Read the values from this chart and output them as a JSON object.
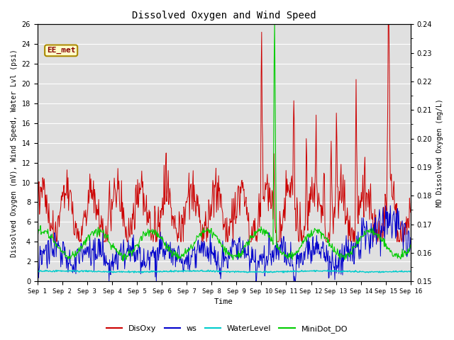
{
  "title": "Dissolved Oxygen and Wind Speed",
  "xlabel": "Time",
  "ylabel_left": "Dissolved Oxygen (mV), Wind Speed, Water Lvl (psi)",
  "ylabel_right": "MD Dissolved Oxygen (mg/L)",
  "ylim_left": [
    0,
    26
  ],
  "ylim_right": [
    0.15,
    0.24
  ],
  "yticks_left": [
    0,
    2,
    4,
    6,
    8,
    10,
    12,
    14,
    16,
    18,
    20,
    22,
    24,
    26
  ],
  "yticks_right": [
    0.15,
    0.16,
    0.17,
    0.18,
    0.19,
    0.2,
    0.21,
    0.22,
    0.23,
    0.24
  ],
  "xtick_labels": [
    "Sep 1",
    "Sep 2",
    "Sep 3",
    "Sep 4",
    "Sep 5",
    "Sep 6",
    "Sep 7",
    "Sep 8",
    "Sep 9",
    "Sep 10",
    "Sep 11",
    "Sep 12",
    "Sep 13",
    "Sep 14",
    "Sep 15",
    "Sep 16"
  ],
  "annotation_text": "EE_met",
  "colors": {
    "DisOxy": "#cc0000",
    "ws": "#0000cc",
    "WaterLevel": "#00cccc",
    "MiniDot_DO": "#00cc00",
    "background": "#e0e0e0",
    "grid": "#ffffff"
  },
  "num_days": 15,
  "points_per_day": 48
}
